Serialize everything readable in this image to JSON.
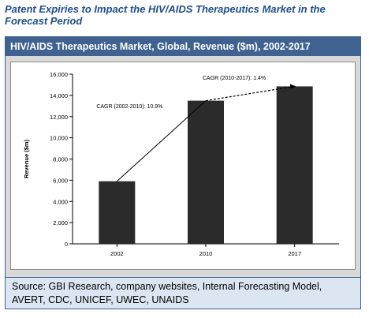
{
  "figure_title": "Patent Expiries to Impact the HIV/AIDS Therapeutics Market in the Forecast Period",
  "panel_title": "HIV/AIDS Therapeutics Market, Global, Revenue ($m), 2002-2017",
  "source": "Source: GBI Research, company websites, Internal Forecasting Model, AVERT, CDC, UNICEF, UWEC, UNAIDS",
  "colors": {
    "bar": "#2b2b2b",
    "header_bg": "#3f6290",
    "source_bg": "#dce6f2",
    "title": "#1f4e8c"
  },
  "chart_data": {
    "type": "bar",
    "categories": [
      "2002",
      "2010",
      "2017"
    ],
    "values": [
      5900,
      13500,
      14850
    ],
    "ylabel": "Revenue ($m)",
    "xlabel": "",
    "ylim": [
      0,
      16000
    ],
    "yticks": [
      0,
      2000,
      4000,
      6000,
      8000,
      10000,
      12000,
      14000,
      16000
    ],
    "ytick_labels": [
      "0",
      "2,000",
      "4,000",
      "6,000",
      "8,000",
      "10,000",
      "12,000",
      "14,000",
      "16,000"
    ],
    "grid": false,
    "annotations": [
      {
        "text": "CAGR (2002-2010): 10.9%",
        "from": "2002",
        "to": "2010",
        "style": "solid"
      },
      {
        "text": "CAGR (2010-2017): 1.4%",
        "from": "2010",
        "to": "2017",
        "style": "dashed"
      }
    ]
  }
}
